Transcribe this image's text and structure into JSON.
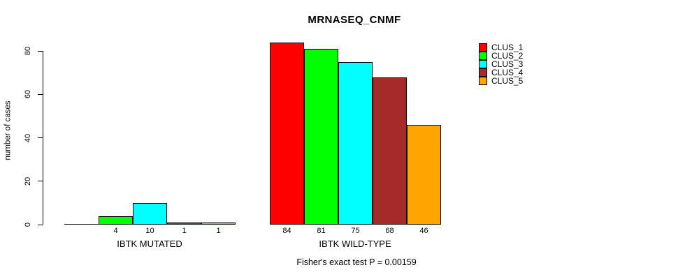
{
  "title": "MRNASEQ_CNMF",
  "footer": "Fisher's exact test P = 0.00159",
  "chart_data": {
    "type": "bar",
    "title": "MRNASEQ_CNMF",
    "xlabel": "",
    "ylabel": "number of cases",
    "ylim": [
      0,
      80
    ],
    "yticks": [
      0,
      20,
      40,
      60,
      80
    ],
    "grid": false,
    "legend_position": "top-right",
    "categories": [
      "IBTK MUTATED",
      "IBTK WILD-TYPE"
    ],
    "series": [
      {
        "name": "CLUS_1",
        "color": "#FF0000",
        "values": [
          0,
          84
        ]
      },
      {
        "name": "CLUS_2",
        "color": "#00FF00",
        "values": [
          4,
          81
        ]
      },
      {
        "name": "CLUS_3",
        "color": "#00FFFF",
        "values": [
          10,
          75
        ]
      },
      {
        "name": "CLUS_4",
        "color": "#A52A2A",
        "values": [
          1,
          68
        ]
      },
      {
        "name": "CLUS_5",
        "color": "#FFA500",
        "values": [
          1,
          46
        ]
      }
    ],
    "bar_value_labels": [
      [
        "",
        "4",
        "10",
        "1",
        "1"
      ],
      [
        "84",
        "81",
        "75",
        "68",
        "46"
      ]
    ],
    "annotation": "Fisher's exact test P = 0.00159"
  }
}
